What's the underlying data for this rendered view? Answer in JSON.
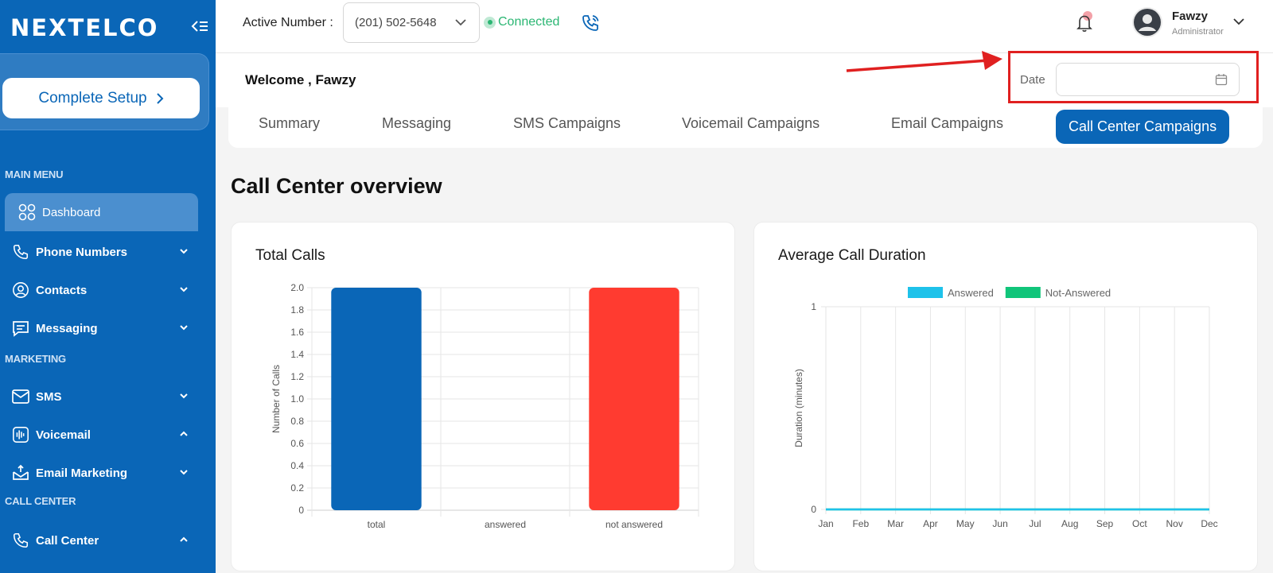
{
  "brand": {
    "logo_text": "NEXTELCO"
  },
  "sidebar": {
    "setup_label": "Complete Setup",
    "sections": [
      {
        "label": "MAIN MENU"
      },
      {
        "label": "MARKETING"
      },
      {
        "label": "CALL CENTER"
      }
    ],
    "items": [
      {
        "label": "Dashboard",
        "icon": "grid-icon"
      },
      {
        "label": "Phone Numbers",
        "icon": "phone-icon"
      },
      {
        "label": "Contacts",
        "icon": "contact-icon"
      },
      {
        "label": "Messaging",
        "icon": "message-icon"
      },
      {
        "label": "SMS",
        "icon": "sms-icon"
      },
      {
        "label": "Voicemail",
        "icon": "voicemail-icon"
      },
      {
        "label": "Email Marketing",
        "icon": "email-icon"
      },
      {
        "label": "Call Center",
        "icon": "phone-icon"
      }
    ]
  },
  "topbar": {
    "active_label": "Active Number :",
    "active_number": "(201) 502-5648",
    "status": "Connected",
    "user_name": "Fawzy",
    "user_role": "Administrator"
  },
  "welcome": {
    "text": "Welcome , Fawzy",
    "date_label": "Date",
    "date_value": ""
  },
  "tabs": [
    {
      "label": "Summary"
    },
    {
      "label": "Messaging"
    },
    {
      "label": "SMS Campaigns"
    },
    {
      "label": "Voicemail Campaigns"
    },
    {
      "label": "Email Campaigns"
    },
    {
      "label": "Call Center Campaigns"
    }
  ],
  "overview_title": "Call Center overview",
  "colors": {
    "brand": "#0a66b7",
    "connected": "#2bb673",
    "highlight": "#e02020"
  },
  "chart_data": [
    {
      "type": "bar",
      "title": "Total Calls",
      "categories": [
        "total",
        "answered",
        "not answered"
      ],
      "values": [
        2,
        0,
        2
      ],
      "colors": [
        "#0a66b7",
        "#0a66b7",
        "#ff3b30"
      ],
      "ylabel": "Number of Calls",
      "xlabel": "",
      "ylim": [
        0,
        2.0
      ],
      "yticks": [
        "2.0",
        "1.8",
        "1.6",
        "1.4",
        "1.2",
        "1.0",
        "0.8",
        "0.6",
        "0.4",
        "0.2",
        "0"
      ],
      "grid": true
    },
    {
      "type": "line",
      "title": "Average Call Duration",
      "categories": [
        "Jan",
        "Feb",
        "Mar",
        "Apr",
        "May",
        "Jun",
        "Jul",
        "Aug",
        "Sep",
        "Oct",
        "Nov",
        "Dec"
      ],
      "series": [
        {
          "name": "Answered",
          "color": "#1ec2ea",
          "values": [
            0,
            0,
            0,
            0,
            0,
            0,
            0,
            0,
            0,
            0,
            0,
            0
          ]
        },
        {
          "name": "Not-Answered",
          "color": "#10c57a",
          "values": [
            0,
            0,
            0,
            0,
            0,
            0,
            0,
            0,
            0,
            0,
            0,
            0
          ]
        }
      ],
      "ylabel": "Duration (minutes)",
      "xlabel": "",
      "ylim": [
        0,
        1
      ],
      "yticks": [
        "1",
        "0"
      ],
      "legend": "top",
      "grid": true
    }
  ]
}
